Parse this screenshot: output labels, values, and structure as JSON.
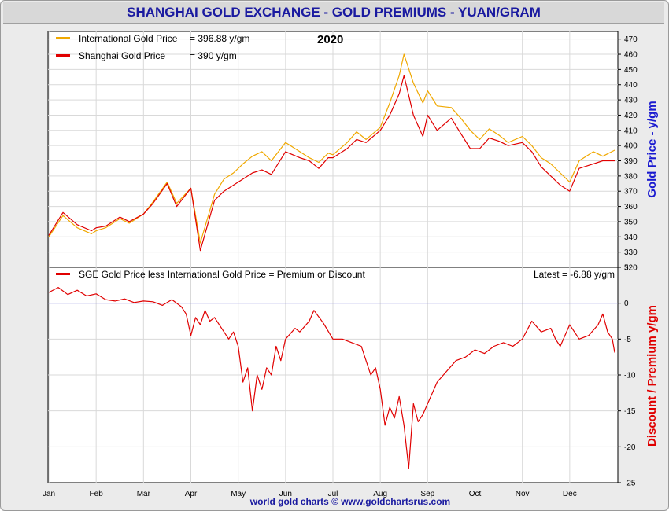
{
  "header": {
    "title": "SHANGHAI GOLD EXCHANGE - GOLD PREMIUMS - YUAN/GRAM"
  },
  "footer": {
    "credit": "world gold charts © www.goldchartsrus.com"
  },
  "colors": {
    "international": "#f0a800",
    "shanghai": "#e00000",
    "premium": "#e00000",
    "zero_line": "#6a6ae0",
    "title_text": "#1a1aa0"
  },
  "chart_data": [
    {
      "type": "line",
      "year_label": "2020",
      "y_axis_title": "Gold Price - y/gm",
      "ylim": [
        320,
        475
      ],
      "y_ticks": [
        320,
        330,
        340,
        350,
        360,
        370,
        380,
        390,
        400,
        410,
        420,
        430,
        440,
        450,
        460,
        470
      ],
      "x_ticks": [
        "Jan",
        "Feb",
        "Mar",
        "Apr",
        "May",
        "Jun",
        "Jul",
        "Aug",
        "Sep",
        "Oct",
        "Nov",
        "Dec"
      ],
      "grid": true,
      "legend": [
        {
          "label": "International Gold Price",
          "value_text": "= 396.88 y/gm",
          "color": "#f0a800"
        },
        {
          "label": "Shanghai Gold Price",
          "value_text": "= 390 y/gm",
          "color": "#e00000"
        }
      ],
      "series": [
        {
          "name": "International Gold Price",
          "x": [
            0,
            0.3,
            0.6,
            0.9,
            1.0,
            1.2,
            1.5,
            1.7,
            2.0,
            2.2,
            2.5,
            2.7,
            3.0,
            3.2,
            3.5,
            3.7,
            3.9,
            4.1,
            4.3,
            4.5,
            4.7,
            5.0,
            5.3,
            5.5,
            5.7,
            5.9,
            6.0,
            6.3,
            6.5,
            6.7,
            7.0,
            7.2,
            7.4,
            7.5,
            7.7,
            7.9,
            8.0,
            8.2,
            8.5,
            8.7,
            8.9,
            9.1,
            9.3,
            9.5,
            9.7,
            10.0,
            10.2,
            10.4,
            10.6,
            10.8,
            11.0,
            11.2,
            11.5,
            11.7,
            11.95
          ],
          "values": [
            340,
            354,
            346,
            342,
            344,
            346,
            352,
            349,
            355,
            363,
            376,
            362,
            372,
            336,
            368,
            378,
            382,
            388,
            393,
            396,
            390,
            402,
            396,
            392,
            389,
            395,
            394,
            402,
            409,
            404,
            412,
            428,
            446,
            460,
            441,
            428,
            436,
            426,
            425,
            418,
            410,
            404,
            411,
            407,
            402,
            406,
            400,
            392,
            388,
            382,
            376,
            390,
            396,
            393,
            397
          ]
        },
        {
          "name": "Shanghai Gold Price",
          "x": [
            0,
            0.3,
            0.6,
            0.9,
            1.0,
            1.2,
            1.5,
            1.7,
            2.0,
            2.2,
            2.5,
            2.7,
            3.0,
            3.2,
            3.5,
            3.7,
            3.9,
            4.1,
            4.3,
            4.5,
            4.7,
            5.0,
            5.3,
            5.5,
            5.7,
            5.9,
            6.0,
            6.3,
            6.5,
            6.7,
            7.0,
            7.2,
            7.4,
            7.5,
            7.7,
            7.9,
            8.0,
            8.2,
            8.5,
            8.7,
            8.9,
            9.1,
            9.3,
            9.5,
            9.7,
            10.0,
            10.2,
            10.4,
            10.6,
            10.8,
            11.0,
            11.2,
            11.5,
            11.7,
            11.95
          ],
          "values": [
            341,
            356,
            348,
            344,
            346,
            347,
            353,
            350,
            355,
            362,
            375,
            360,
            372,
            331,
            364,
            370,
            374,
            378,
            382,
            384,
            381,
            396,
            392,
            390,
            385,
            392,
            392,
            398,
            404,
            402,
            410,
            420,
            434,
            446,
            420,
            406,
            420,
            410,
            418,
            408,
            398,
            398,
            405,
            403,
            400,
            402,
            396,
            386,
            380,
            374,
            370,
            385,
            388,
            390,
            390
          ]
        }
      ]
    },
    {
      "type": "line",
      "y_axis_title": "Discount / Premium y/gm",
      "ylim": [
        -25,
        5
      ],
      "y_ticks": [
        -25,
        -20,
        -15,
        -10,
        -5,
        0,
        5
      ],
      "x_ticks": [
        "Jan",
        "Feb",
        "Mar",
        "Apr",
        "May",
        "Jun",
        "Jul",
        "Aug",
        "Sep",
        "Oct",
        "Nov",
        "Dec"
      ],
      "grid": true,
      "legend": [
        {
          "label": "SGE Gold Price less International Gold Price = Premium or Discount",
          "color": "#e00000"
        }
      ],
      "latest_text": "Latest = -6.88 y/gm",
      "series": [
        {
          "name": "SGE Gold Price less International Gold Price = Premium or Discount",
          "x": [
            0,
            0.2,
            0.4,
            0.6,
            0.8,
            1.0,
            1.2,
            1.4,
            1.6,
            1.8,
            2.0,
            2.2,
            2.4,
            2.6,
            2.8,
            2.9,
            3.0,
            3.1,
            3.2,
            3.3,
            3.4,
            3.5,
            3.6,
            3.8,
            3.9,
            4.0,
            4.1,
            4.2,
            4.3,
            4.4,
            4.5,
            4.6,
            4.7,
            4.8,
            4.9,
            5.0,
            5.2,
            5.3,
            5.5,
            5.6,
            5.8,
            6.0,
            6.2,
            6.4,
            6.6,
            6.8,
            6.9,
            7.0,
            7.1,
            7.2,
            7.3,
            7.4,
            7.5,
            7.6,
            7.7,
            7.8,
            7.9,
            8.0,
            8.2,
            8.4,
            8.6,
            8.8,
            9.0,
            9.2,
            9.4,
            9.6,
            9.8,
            10.0,
            10.2,
            10.4,
            10.6,
            10.7,
            10.8,
            11.0,
            11.2,
            11.4,
            11.6,
            11.7,
            11.8,
            11.9,
            11.95
          ],
          "values": [
            1.5,
            2.2,
            1.2,
            1.8,
            1.0,
            1.3,
            0.5,
            0.3,
            0.6,
            0.1,
            0.3,
            0.2,
            -0.3,
            0.5,
            -0.5,
            -1.5,
            -4.5,
            -2.0,
            -3.0,
            -1.0,
            -2.5,
            -2.0,
            -3.0,
            -5.0,
            -4.0,
            -6.0,
            -11.0,
            -9.0,
            -15.0,
            -10.0,
            -12.0,
            -9.0,
            -10.0,
            -6.0,
            -8.0,
            -5.0,
            -3.5,
            -4.0,
            -2.5,
            -1.0,
            -2.8,
            -5.0,
            -5.0,
            -5.5,
            -6.0,
            -10.0,
            -9.0,
            -12.0,
            -17.0,
            -14.5,
            -16.0,
            -13.0,
            -17.0,
            -23.0,
            -14.0,
            -16.5,
            -15.5,
            -14.0,
            -11.0,
            -9.5,
            -8.0,
            -7.5,
            -6.5,
            -7.0,
            -6.0,
            -5.5,
            -6.0,
            -5.0,
            -2.5,
            -4.0,
            -3.5,
            -5.0,
            -6.0,
            -3.0,
            -5.0,
            -4.5,
            -3.0,
            -1.5,
            -4.0,
            -5.0,
            -6.88
          ]
        }
      ]
    }
  ]
}
